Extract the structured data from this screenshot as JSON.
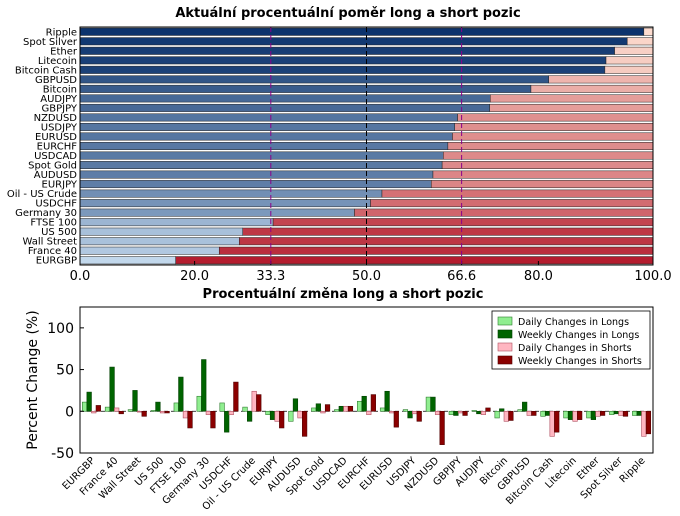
{
  "chart_data": [
    {
      "type": "bar",
      "orientation": "horizontal",
      "stacked": true,
      "title": "Aktuální procentuální poměr long a short pozic",
      "xlim": [
        0,
        100
      ],
      "xticks": [
        "0.0",
        "20.0",
        "33.3",
        "50.0",
        "66.6",
        "80.0",
        "100.0"
      ],
      "reference_lines": [
        33.3,
        50.0,
        66.6
      ],
      "categories": [
        "Ripple",
        "Spot Silver",
        "Ether",
        "Litecoin",
        "Bitcoin Cash",
        "GBPUSD",
        "Bitcoin",
        "AUDJPY",
        "GBPJPY",
        "NZDUSD",
        "USDJPY",
        "EURUSD",
        "EURCHF",
        "USDCAD",
        "Spot Gold",
        "AUDUSD",
        "EURJPY",
        "Oil - US Crude",
        "USDCHF",
        "Germany 30",
        "FTSE 100",
        "US 500",
        "Wall Street",
        "France 40",
        "EURGBP"
      ],
      "series": [
        {
          "role": "long",
          "values": [
            98.4,
            95.5,
            93.3,
            91.8,
            91.6,
            81.8,
            78.7,
            71.6,
            71.5,
            65.9,
            65.4,
            65.0,
            64.2,
            63.4,
            63.2,
            61.6,
            61.3,
            52.7,
            50.7,
            47.9,
            33.7,
            28.4,
            27.8,
            24.3,
            16.7
          ]
        },
        {
          "role": "short",
          "values": [
            1.6,
            4.5,
            6.7,
            8.2,
            8.4,
            18.2,
            21.3,
            28.4,
            28.5,
            34.1,
            34.6,
            35.0,
            35.8,
            36.6,
            36.8,
            38.4,
            38.7,
            47.3,
            49.3,
            52.1,
            66.3,
            71.6,
            72.2,
            75.7,
            83.3
          ]
        }
      ]
    },
    {
      "type": "bar",
      "title": "Procentuální změna long a short pozic",
      "ylabel": "Percent Change (%)",
      "ylim": [
        -50,
        125
      ],
      "yticks": [
        -50,
        0,
        50,
        100
      ],
      "legend_position": "top-right",
      "categories": [
        "EURGBP",
        "France 40",
        "Wall Street",
        "US 500",
        "FTSE 100",
        "Germany 30",
        "USDCHF",
        "Oil - US Crude",
        "EURJPY",
        "AUDUSD",
        "Spot Gold",
        "USDCAD",
        "EURCHF",
        "EURUSD",
        "USDJPY",
        "NZDUSD",
        "GBPJPY",
        "AUDJPY",
        "Bitcoin",
        "GBPUSD",
        "Bitcoin Cash",
        "Litecoin",
        "Ether",
        "Spot Silver",
        "Ripple"
      ],
      "series": [
        {
          "name": "Daily Changes in Longs",
          "color": "#90ee90",
          "edge": "#2e7d2e",
          "values": [
            11,
            5,
            2,
            1,
            10,
            18,
            10,
            5,
            -4,
            -12,
            4,
            2,
            12,
            4,
            2,
            17,
            -4,
            1,
            -8,
            2,
            -6,
            -8,
            -8,
            -4,
            -5
          ]
        },
        {
          "name": "Weekly Changes in Longs",
          "color": "#006400",
          "edge": "#004000",
          "values": [
            23,
            53,
            25,
            11,
            41,
            62,
            -25,
            -12,
            -10,
            15,
            9,
            6,
            18,
            24,
            -8,
            17,
            -5,
            -3,
            3,
            11,
            -5,
            -10,
            -10,
            -3,
            -5
          ]
        },
        {
          "name": "Daily Changes in Shorts",
          "color": "#ffb6c1",
          "edge": "#b05060",
          "values": [
            -2,
            4,
            -1,
            -2,
            -8,
            -4,
            -4,
            24,
            -12,
            -8,
            -2,
            6,
            -4,
            -2,
            -3,
            -4,
            -2,
            -4,
            -12,
            -5,
            -30,
            -12,
            -6,
            -5,
            -30
          ]
        },
        {
          "name": "Weekly Changes in Shorts",
          "color": "#8b0000",
          "edge": "#500000",
          "values": [
            7,
            -3,
            -6,
            -2,
            -20,
            -20,
            35,
            20,
            -20,
            -30,
            8,
            6,
            20,
            -19,
            -12,
            -40,
            -5,
            4,
            -11,
            -5,
            -25,
            -10,
            -5,
            -6,
            -27
          ]
        }
      ]
    }
  ]
}
